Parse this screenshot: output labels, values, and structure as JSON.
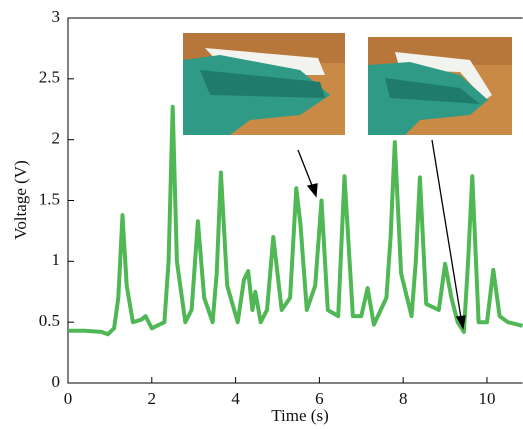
{
  "chart_data": {
    "type": "line",
    "xlabel": "Time (s)",
    "ylabel": "Voltage (V)",
    "x": [
      0,
      0.4,
      0.8,
      0.95,
      1.1,
      1.2,
      1.3,
      1.4,
      1.55,
      1.75,
      1.85,
      2.0,
      2.3,
      2.4,
      2.5,
      2.6,
      2.8,
      2.95,
      3.1,
      3.25,
      3.45,
      3.55,
      3.65,
      3.8,
      4.05,
      4.2,
      4.3,
      4.4,
      4.47,
      4.6,
      4.75,
      4.9,
      5.1,
      5.3,
      5.45,
      5.55,
      5.7,
      5.9,
      6.05,
      6.2,
      6.45,
      6.6,
      6.8,
      7.0,
      7.15,
      7.3,
      7.6,
      7.7,
      7.8,
      7.95,
      8.2,
      8.3,
      8.4,
      8.55,
      8.85,
      9.0,
      9.15,
      9.3,
      9.45,
      9.55,
      9.65,
      9.8,
      10.0,
      10.15,
      10.3,
      10.5,
      10.85
    ],
    "series": [
      {
        "color": "#3cb043",
        "values": [
          0.43,
          0.43,
          0.42,
          0.4,
          0.45,
          0.7,
          1.38,
          0.8,
          0.5,
          0.52,
          0.55,
          0.45,
          0.5,
          1.0,
          2.27,
          1.0,
          0.5,
          0.6,
          1.33,
          0.7,
          0.5,
          0.9,
          1.73,
          0.8,
          0.5,
          0.85,
          0.92,
          0.6,
          0.75,
          0.5,
          0.6,
          1.2,
          0.6,
          0.7,
          1.6,
          1.3,
          0.6,
          0.8,
          1.5,
          0.6,
          0.55,
          1.7,
          0.55,
          0.55,
          0.78,
          0.48,
          0.7,
          1.2,
          1.98,
          0.9,
          0.55,
          1.0,
          1.69,
          0.65,
          0.6,
          0.98,
          0.7,
          0.5,
          0.42,
          1.0,
          1.7,
          0.5,
          0.5,
          0.93,
          0.55,
          0.5,
          0.47
        ]
      }
    ],
    "xlim": [
      0,
      10.85
    ],
    "ylim": [
      0,
      3
    ],
    "xticks": [
      0,
      2,
      4,
      6,
      8,
      10
    ],
    "yticks": [
      0,
      0.5,
      1,
      1.5,
      2,
      2.5,
      3
    ]
  }
}
